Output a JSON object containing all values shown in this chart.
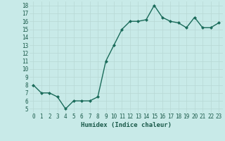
{
  "x": [
    0,
    1,
    2,
    3,
    4,
    5,
    6,
    7,
    8,
    9,
    10,
    11,
    12,
    13,
    14,
    15,
    16,
    17,
    18,
    19,
    20,
    21,
    22,
    23
  ],
  "y": [
    8.0,
    7.0,
    7.0,
    6.5,
    5.0,
    6.0,
    6.0,
    6.0,
    6.5,
    11.0,
    13.0,
    15.0,
    16.0,
    16.0,
    16.2,
    18.0,
    16.5,
    16.0,
    15.8,
    15.2,
    16.5,
    15.2,
    15.2,
    15.8
  ],
  "xlabel": "Humidex (Indice chaleur)",
  "line_color": "#1a6b5a",
  "bg_color": "#c8eae8",
  "grid_color": "#b8d8d5",
  "tick_label_color": "#1a5a4a",
  "ylim_min": 4.5,
  "ylim_max": 18.5,
  "xlim_min": -0.5,
  "xlim_max": 23.5,
  "yticks": [
    5,
    6,
    7,
    8,
    9,
    10,
    11,
    12,
    13,
    14,
    15,
    16,
    17,
    18
  ],
  "xticks": [
    0,
    1,
    2,
    3,
    4,
    5,
    6,
    7,
    8,
    9,
    10,
    11,
    12,
    13,
    14,
    15,
    16,
    17,
    18,
    19,
    20,
    21,
    22,
    23
  ],
  "marker_size": 2.5,
  "line_width": 1.0,
  "tick_fontsize": 5.5,
  "xlabel_fontsize": 6.5
}
